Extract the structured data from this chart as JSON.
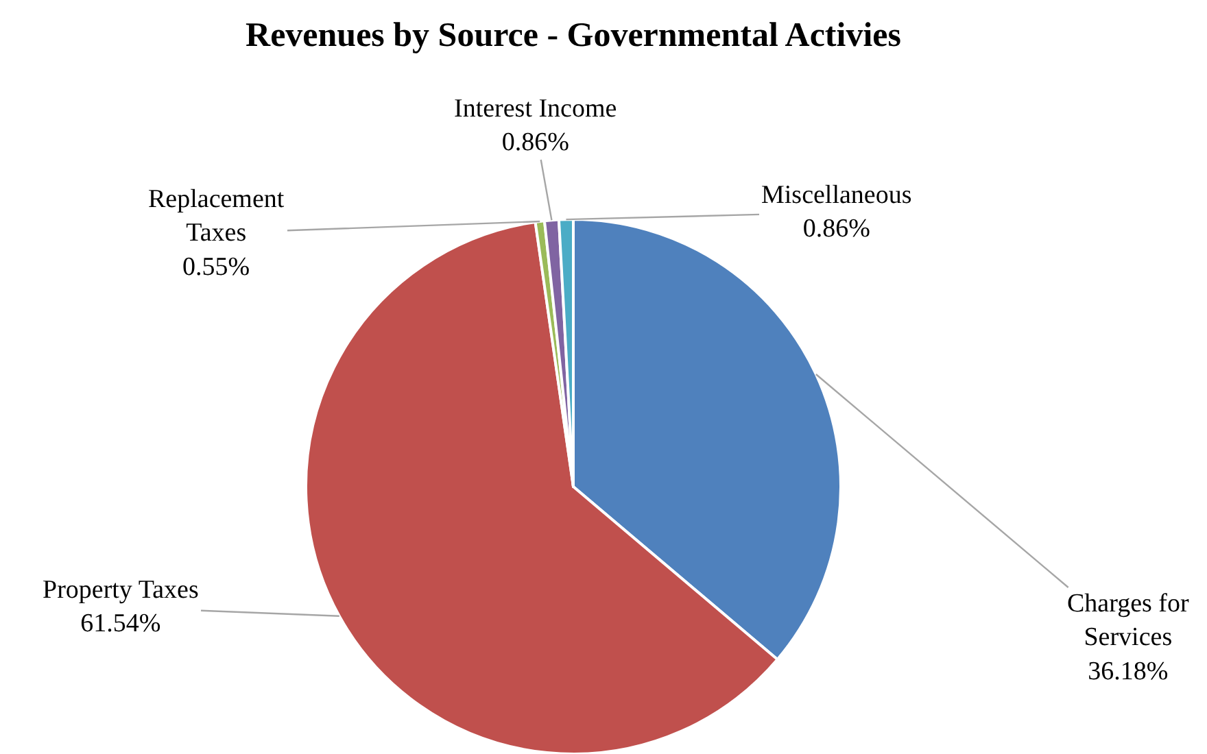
{
  "chart_data": {
    "type": "pie",
    "title": "Revenues by Source - Governmental Activies",
    "categories": [
      "Charges for Services",
      "Property Taxes",
      "Replacement Taxes",
      "Interest Income",
      "Miscellaneous"
    ],
    "values": [
      36.18,
      61.54,
      0.55,
      0.86,
      0.86
    ],
    "value_labels": [
      "36.18%",
      "61.54%",
      "0.55%",
      "0.86%",
      "0.86%"
    ],
    "colors": [
      "#4f81bd",
      "#c0504d",
      "#9bbb59",
      "#8064a2",
      "#4bacc6"
    ],
    "legend": false
  }
}
